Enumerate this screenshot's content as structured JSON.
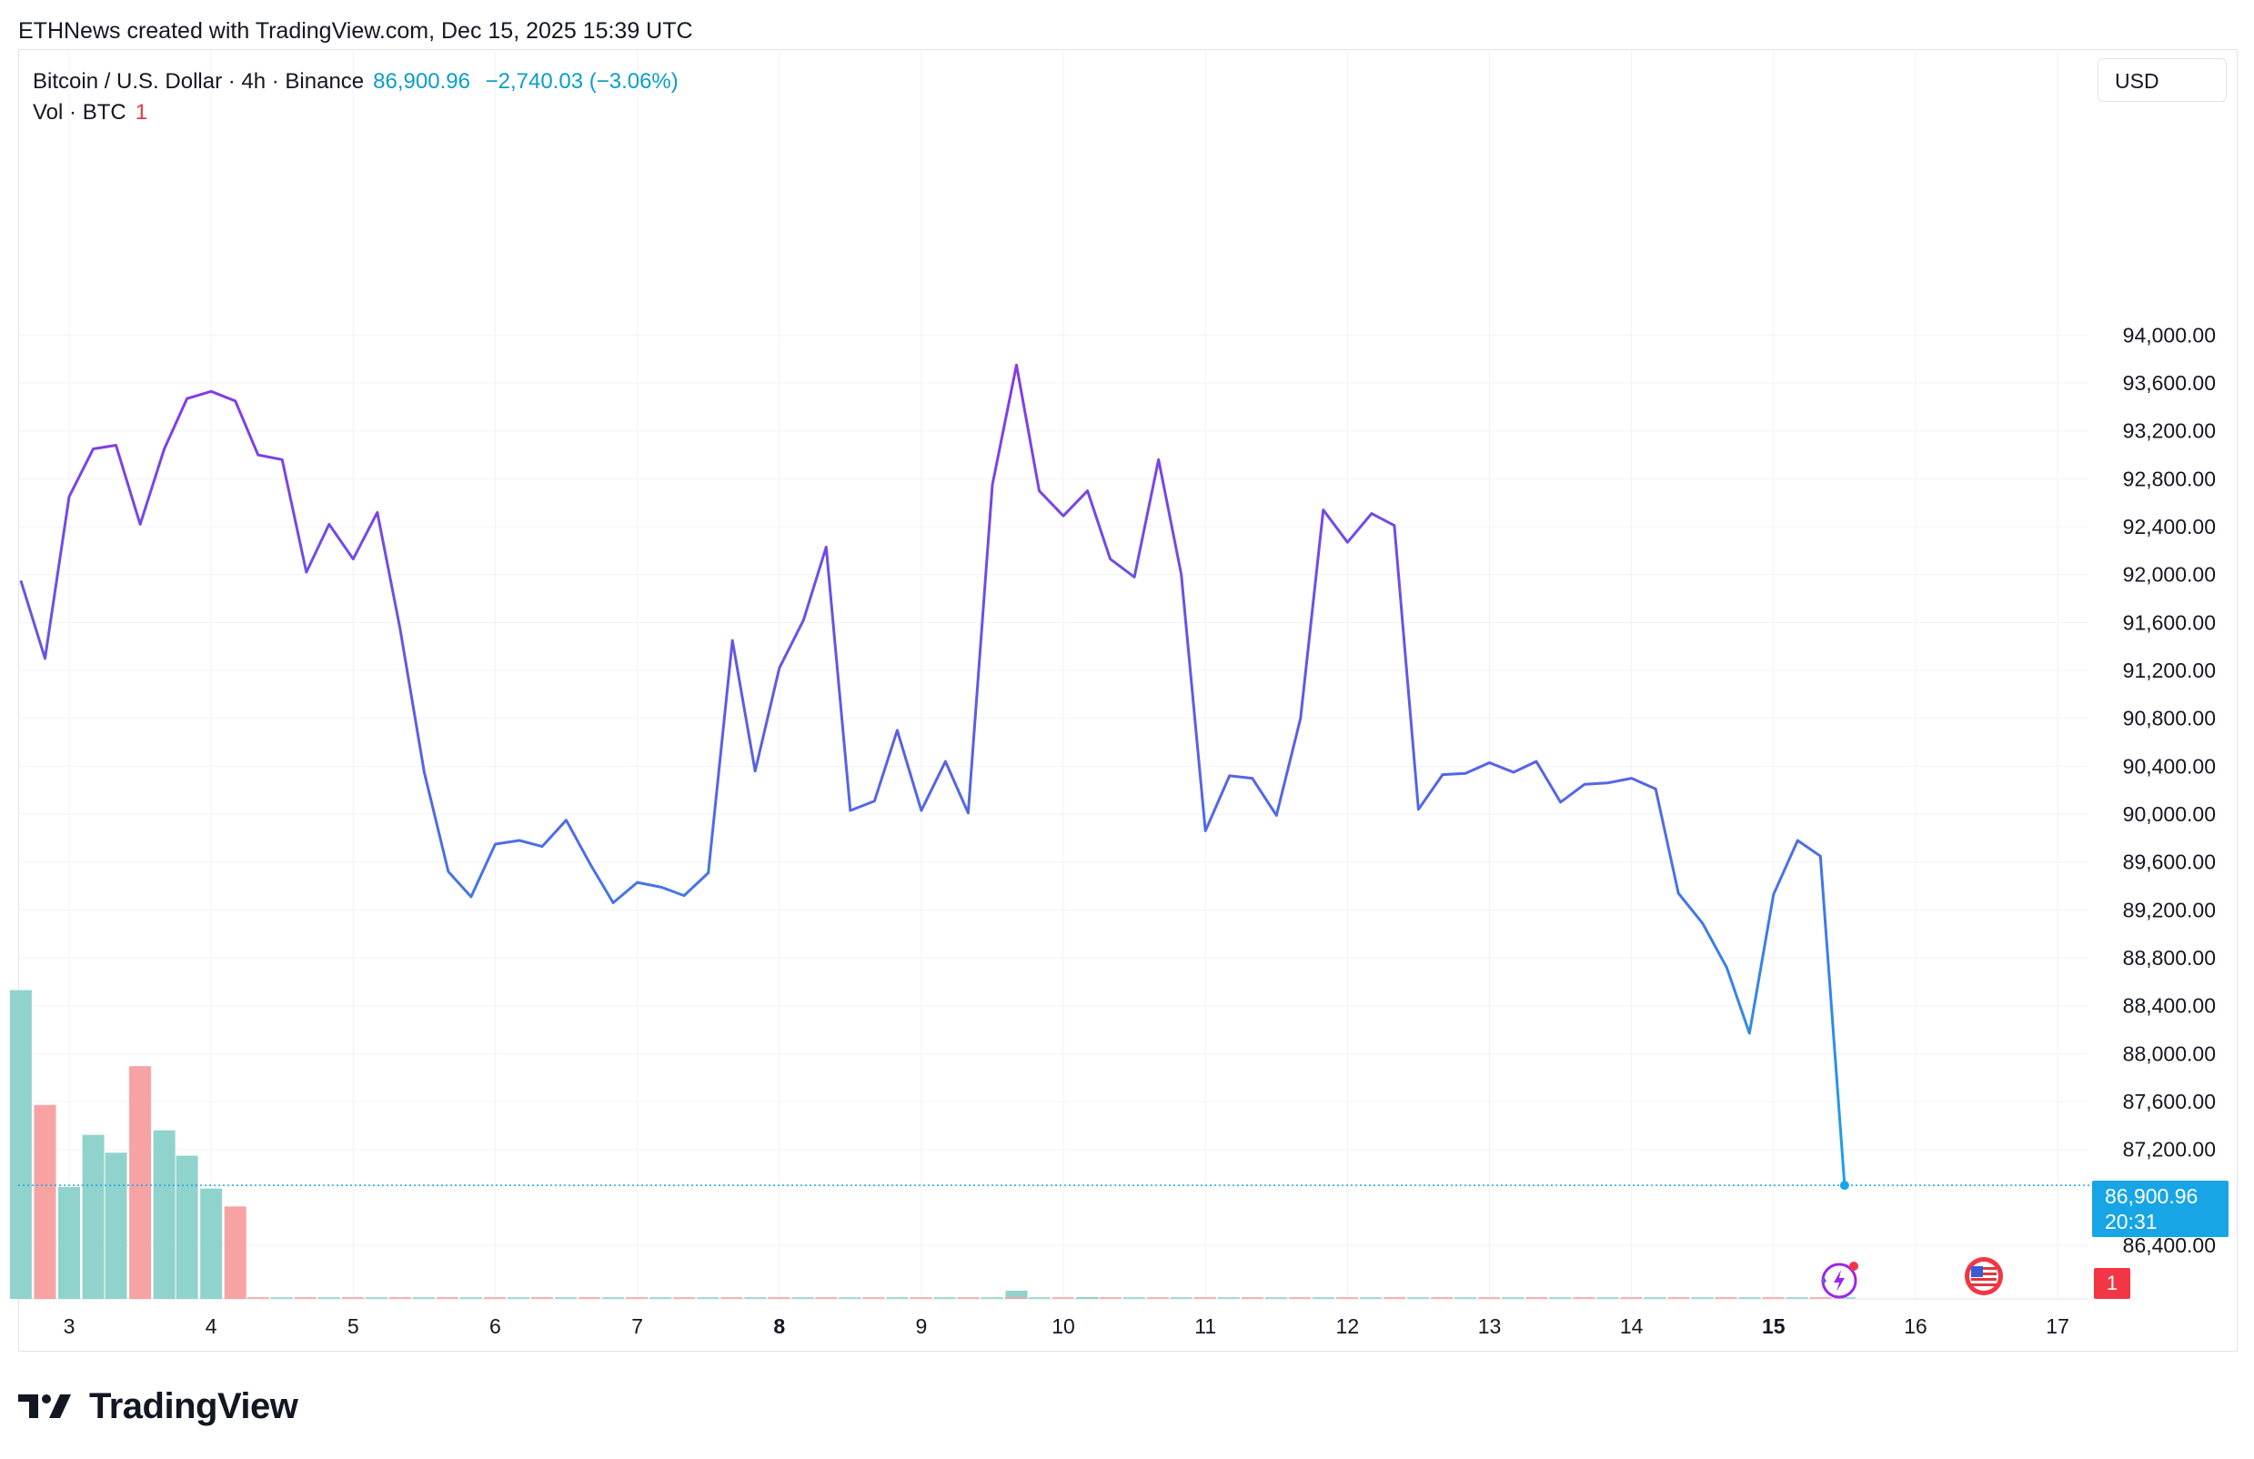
{
  "header": {
    "attribution": "ETHNews created with TradingView.com, Dec 15, 2025 15:39 UTC"
  },
  "legend": {
    "symbol": "Bitcoin / U.S. Dollar · 4h · Binance",
    "price": "86,900.96",
    "change": "−2,740.03 (−3.06%)",
    "volume_label": "Vol · BTC",
    "volume_value": "1"
  },
  "currency_button": "USD",
  "price_tag": {
    "value": "86,900.96",
    "countdown": "20:31"
  },
  "volume_badge": "1",
  "logo": {
    "text": "TradingView"
  },
  "icons": [
    "bolt-icon",
    "us-flag-icon",
    "tradingview-logo-icon"
  ],
  "colors": {
    "line_start": "#9c27e6",
    "line_mid": "#5b5ee6",
    "line_end": "#17a5e6",
    "vol_up": "#8fd3cc",
    "vol_down": "#f7a3a3",
    "last_price": "#17a5e6",
    "grid": "#f0f3fa"
  },
  "chart_data": {
    "type": "line",
    "title": "Bitcoin / U.S. Dollar · 4h · Binance",
    "xlabel": "",
    "ylabel": "",
    "x_ticks": [
      "3",
      "4",
      "5",
      "6",
      "7",
      "8",
      "9",
      "10",
      "11",
      "12",
      "13",
      "14",
      "15",
      "16",
      "17"
    ],
    "x_ticks_bold": [
      "8",
      "15"
    ],
    "ylim": [
      86150,
      94400
    ],
    "y_ticks": [
      "86,400.00",
      "87,200.00",
      "87,600.00",
      "88,000.00",
      "88,400.00",
      "88,800.00",
      "89,200.00",
      "89,600.00",
      "90,000.00",
      "90,400.00",
      "90,800.00",
      "91,200.00",
      "91,600.00",
      "92,000.00",
      "92,400.00",
      "92,800.00",
      "93,200.00",
      "93,600.00",
      "94,000.00"
    ],
    "grid": true,
    "series": [
      {
        "x": [
          2.66,
          2.83,
          3.0,
          3.17,
          3.33,
          3.5,
          3.67,
          3.83,
          4.0,
          4.17,
          4.33,
          4.5,
          4.67,
          4.83,
          5.0,
          5.17,
          5.33,
          5.5,
          5.67,
          5.83,
          6.0,
          6.17,
          6.33,
          6.5,
          6.67,
          6.83,
          7.0,
          7.17,
          7.33,
          7.5,
          7.67,
          7.83,
          8.0,
          8.17,
          8.33,
          8.5,
          8.67,
          8.83,
          9.0,
          9.17,
          9.33,
          9.5,
          9.67,
          9.83,
          10.0,
          10.17,
          10.33,
          10.5,
          10.67,
          10.83,
          11.0,
          11.17,
          11.33,
          11.5,
          11.67,
          11.83,
          12.0,
          12.17,
          12.33,
          12.5,
          12.67,
          12.83,
          13.0,
          13.17,
          13.33,
          13.5,
          13.67,
          13.83,
          14.0,
          14.17,
          14.33,
          14.5,
          14.67,
          14.83,
          15.0,
          15.17,
          15.33,
          15.5
        ],
        "values": [
          91950,
          91300,
          92650,
          93050,
          93080,
          92420,
          93050,
          93470,
          93530,
          93450,
          93000,
          92960,
          92020,
          92420,
          92130,
          92520,
          91550,
          90350,
          89520,
          89310,
          89750,
          89780,
          89730,
          89950,
          89580,
          89260,
          89430,
          89390,
          89320,
          89510,
          91450,
          90360,
          91220,
          91620,
          92230,
          90030,
          90110,
          90700,
          90030,
          90440,
          90010,
          92750,
          93750,
          92700,
          92490,
          92700,
          92130,
          91980,
          92960,
          92000,
          89860,
          90320,
          90300,
          89990,
          90800,
          92540,
          92270,
          92510,
          92410,
          90040,
          90330,
          90340,
          90430,
          90350,
          90440,
          90100,
          90250,
          90260,
          90300,
          90210,
          89340,
          89090,
          88720,
          88170,
          89330,
          89780,
          89650,
          86900.96
        ]
      }
    ],
    "volume": {
      "x": [
        2.66,
        2.83,
        3.0,
        3.17,
        3.33,
        3.5,
        3.67,
        3.83,
        4.0,
        4.17,
        9.67,
        10.17
      ],
      "values": [
        2070,
        1300,
        750,
        1100,
        980,
        1560,
        1130,
        960,
        740,
        620,
        55,
        12
      ],
      "up": [
        true,
        false,
        true,
        true,
        true,
        false,
        true,
        true,
        true,
        false,
        true,
        true
      ]
    },
    "last_price": 86900.96
  }
}
